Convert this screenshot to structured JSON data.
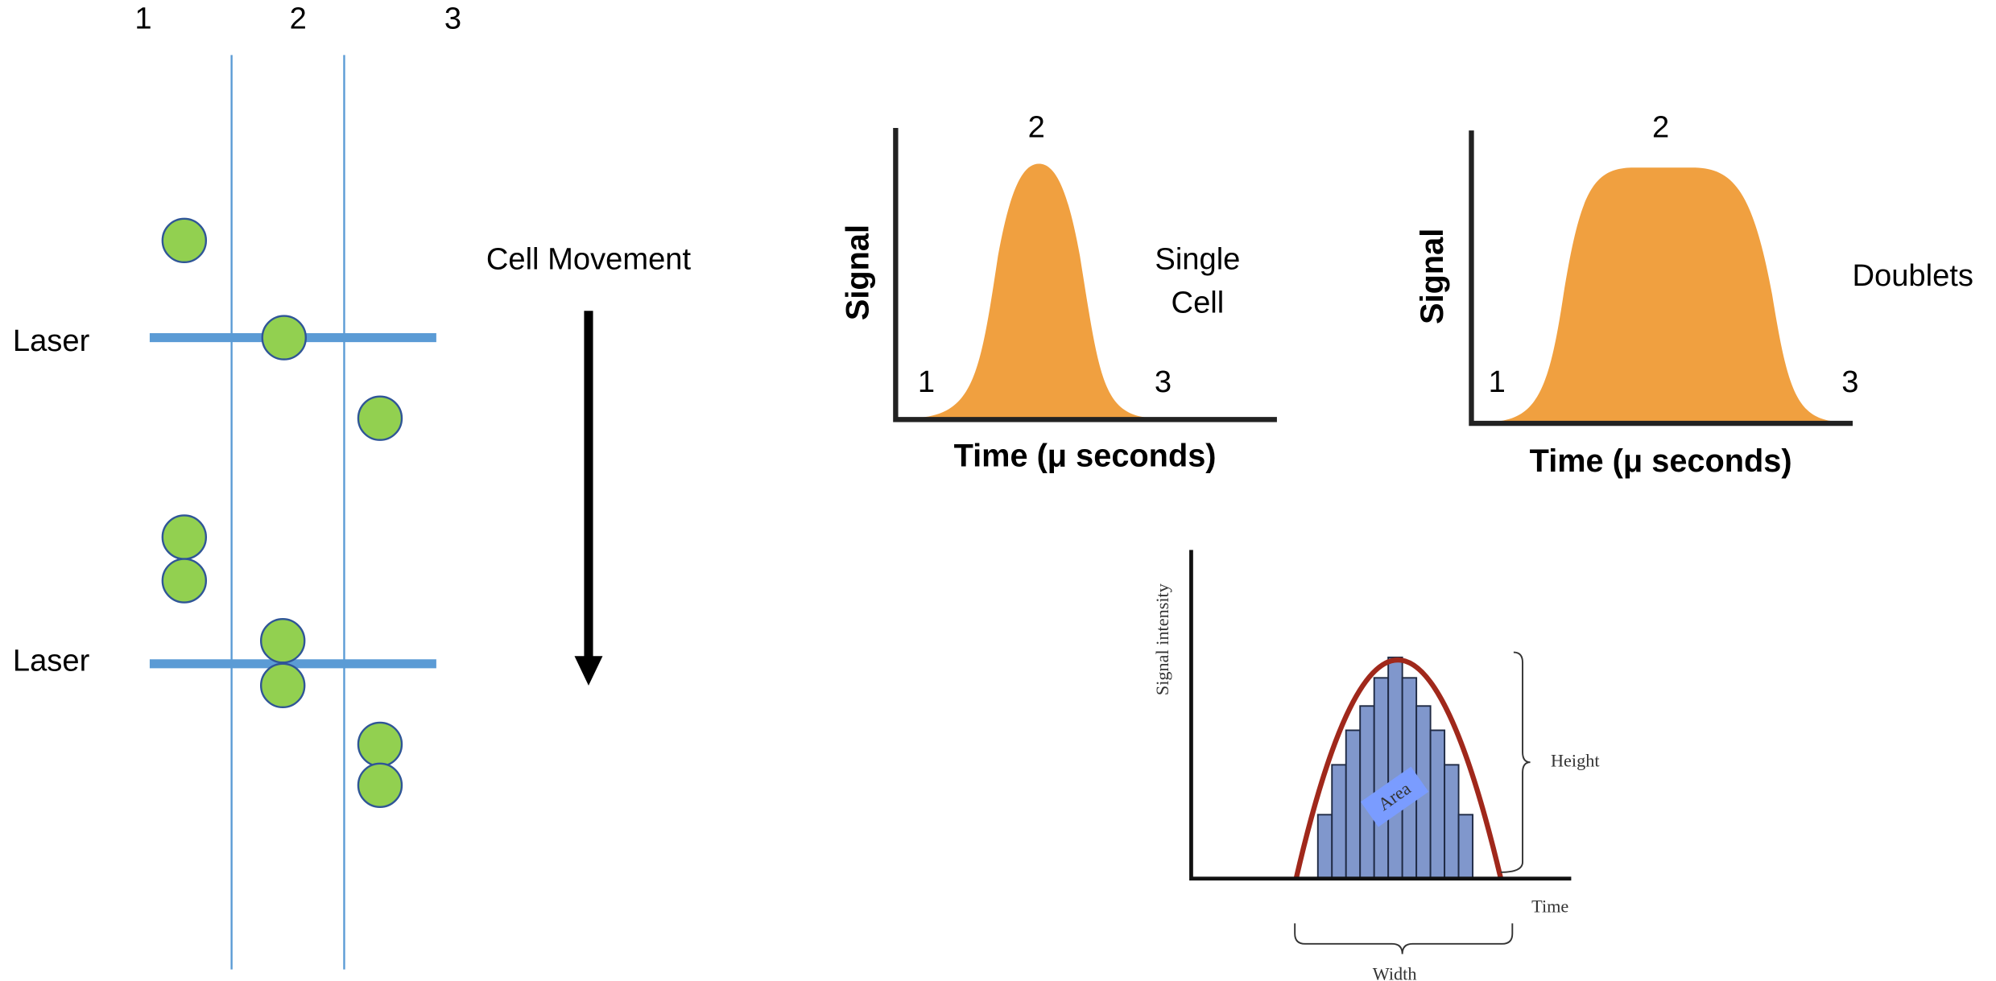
{
  "flow_diagram": {
    "column_labels": [
      "1",
      "2",
      "3"
    ],
    "laser_labels": [
      "Laser",
      "Laser"
    ],
    "movement_label": "Cell Movement"
  },
  "pulse_plots": [
    {
      "y_label": "Signal",
      "x_label": "Time (μ seconds)",
      "point_labels": [
        "1",
        "2",
        "3"
      ],
      "caption": [
        "Single",
        "Cell"
      ]
    },
    {
      "y_label": "Signal",
      "x_label": "Time (μ seconds)",
      "point_labels": [
        "1",
        "2",
        "3"
      ],
      "caption": [
        "Doublets"
      ]
    }
  ],
  "area_plot": {
    "y_label": "Signal intensity",
    "x_label": "Time",
    "height_label": "Height",
    "width_label": "Width",
    "area_label": "Area"
  }
}
